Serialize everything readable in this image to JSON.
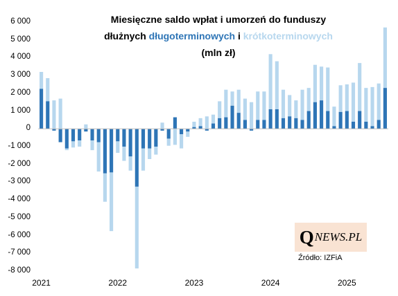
{
  "chart_data": {
    "type": "bar",
    "stacked": true,
    "title_parts": {
      "line1": "Miesięczne saldo wpłat i umorzeń do funduszy",
      "line2_prefix": "dłużnych",
      "series1_label": "długoterminowych",
      "connector": "i",
      "series2_label": "krótkoterminowych",
      "line3": "(mln zł)"
    },
    "colors": {
      "dlugoterminowe": "#2e75b6",
      "krotkoterminowe": "#b7d7ee"
    },
    "ylim": [
      -8000,
      6000
    ],
    "yticks": [
      6000,
      5000,
      4000,
      3000,
      2000,
      1000,
      0,
      -1000,
      -2000,
      -3000,
      -4000,
      -5000,
      -6000,
      -7000,
      -8000
    ],
    "ytick_labels": [
      "6 000",
      "5 000",
      "4 000",
      "3 000",
      "2 000",
      "1 000",
      "0",
      "-1 000",
      "-2 000",
      "-3 000",
      "-4 000",
      "-5 000",
      "-6 000",
      "-7 000",
      "-8 000"
    ],
    "x_year_labels": [
      "2021",
      "2022",
      "2023",
      "2024",
      "2025"
    ],
    "grid": false,
    "legend": "none",
    "categories": [
      "2021-01",
      "2021-02",
      "2021-03",
      "2021-04",
      "2021-05",
      "2021-06",
      "2021-07",
      "2021-08",
      "2021-09",
      "2021-10",
      "2021-11",
      "2021-12",
      "2022-01",
      "2022-02",
      "2022-03",
      "2022-04",
      "2022-05",
      "2022-06",
      "2022-07",
      "2022-08",
      "2022-09",
      "2022-10",
      "2022-11",
      "2022-12",
      "2023-01",
      "2023-02",
      "2023-03",
      "2023-04",
      "2023-05",
      "2023-06",
      "2023-07",
      "2023-08",
      "2023-09",
      "2023-10",
      "2023-11",
      "2023-12",
      "2024-01",
      "2024-02",
      "2024-03",
      "2024-04",
      "2024-05",
      "2024-06",
      "2024-07",
      "2024-08",
      "2024-09",
      "2024-10",
      "2024-11",
      "2024-12",
      "2025-01",
      "2025-02",
      "2025-03",
      "2025-04",
      "2025-05",
      "2025-06",
      "2025-07"
    ],
    "series": [
      {
        "name": "długoterminowych",
        "values": [
          2250,
          1550,
          -100,
          -750,
          -1100,
          -700,
          -650,
          -150,
          -650,
          -750,
          -2500,
          -2450,
          -700,
          -1000,
          -1550,
          -3250,
          -1100,
          -1100,
          -1000,
          -100,
          -550,
          650,
          -300,
          -150,
          100,
          150,
          -100,
          300,
          600,
          650,
          1300,
          900,
          500,
          -100,
          500,
          500,
          1100,
          1100,
          600,
          700,
          600,
          500,
          1000,
          1500,
          1600,
          1000,
          150,
          950,
          1000,
          400,
          1000,
          400,
          150,
          500,
          2300
        ]
      },
      {
        "name": "krótkoterminowych",
        "values": [
          950,
          1300,
          1600,
          1700,
          -100,
          -350,
          -350,
          250,
          -550,
          -1650,
          -1600,
          -3300,
          -650,
          -800,
          -800,
          -4600,
          -1250,
          -600,
          -450,
          350,
          -400,
          -900,
          -800,
          -300,
          300,
          450,
          700,
          500,
          950,
          1550,
          800,
          1300,
          1200,
          1500,
          1600,
          1600,
          3100,
          2700,
          1600,
          1200,
          1000,
          1700,
          1300,
          2100,
          1900,
          2450,
          1100,
          1500,
          1500,
          2200,
          2700,
          1900,
          2200,
          2050,
          3400
        ]
      }
    ]
  },
  "branding": {
    "logo_initial": "Q",
    "logo_rest": "NEWS.PL"
  },
  "source": "Źródło: IZFiA"
}
